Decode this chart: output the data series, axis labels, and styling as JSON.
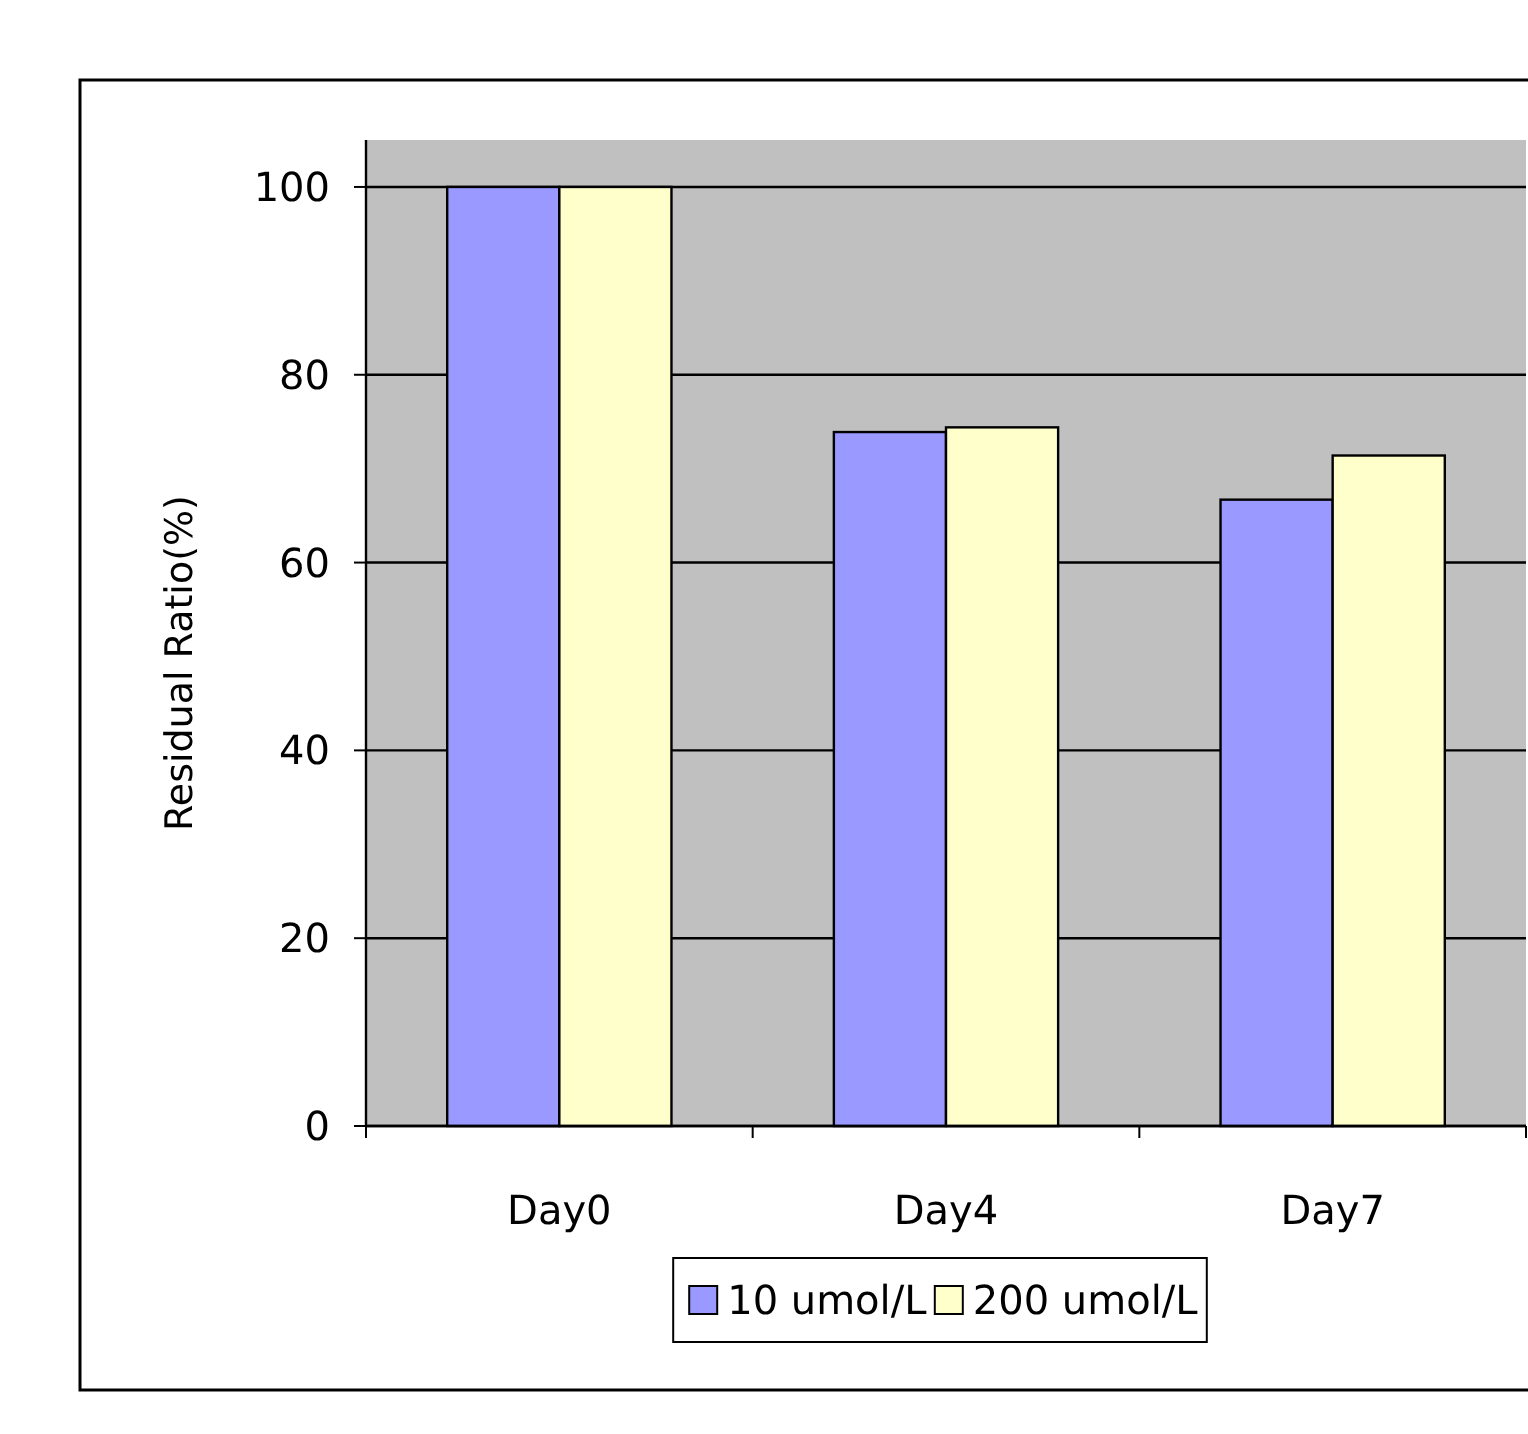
{
  "chart_data": {
    "type": "bar",
    "ylabel": "Residual Ratio(%)",
    "categories": [
      "Day0",
      "Day4",
      "Day7"
    ],
    "series": [
      {
        "name": "10 umol/L",
        "color": "#9999ff",
        "values": [
          100,
          73.9,
          66.7
        ]
      },
      {
        "name": "200 umol/L",
        "color": "#ffffcc",
        "values": [
          100,
          74.4,
          71.4
        ]
      }
    ],
    "ylim": [
      0,
      105
    ],
    "yticks": [
      0,
      20,
      40,
      60,
      80,
      100
    ],
    "grid": "y",
    "legend": "bottom"
  }
}
